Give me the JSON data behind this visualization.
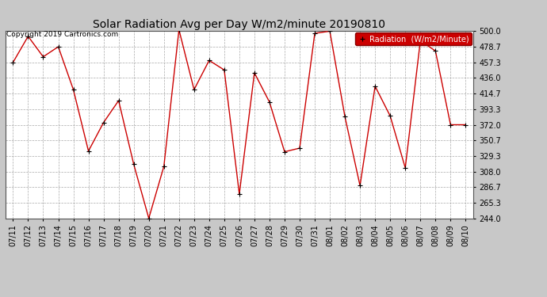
{
  "title": "Solar Radiation Avg per Day W/m2/minute 20190810",
  "copyright": "Copyright 2019 Cartronics.com",
  "legend_label": "Radiation  (W/m2/Minute)",
  "dates": [
    "07/11",
    "07/12",
    "07/13",
    "07/14",
    "07/15",
    "07/16",
    "07/17",
    "07/18",
    "07/19",
    "07/20",
    "07/21",
    "07/22",
    "07/23",
    "07/24",
    "07/25",
    "07/26",
    "07/27",
    "07/28",
    "07/29",
    "07/30",
    "07/31",
    "08/01",
    "08/02",
    "08/03",
    "08/04",
    "08/05",
    "08/06",
    "08/07",
    "08/08",
    "08/09",
    "08/10"
  ],
  "values": [
    457.3,
    493.0,
    465.0,
    478.7,
    420.0,
    336.0,
    375.0,
    405.0,
    318.0,
    244.0,
    315.0,
    502.0,
    420.0,
    460.0,
    447.0,
    277.0,
    443.0,
    403.0,
    335.0,
    340.0,
    497.0,
    500.0,
    383.0,
    288.7,
    424.7,
    384.0,
    313.0,
    487.0,
    473.0,
    372.0,
    372.0
  ],
  "ylim": [
    244.0,
    500.0
  ],
  "yticks": [
    244.0,
    265.3,
    286.7,
    308.0,
    329.3,
    350.7,
    372.0,
    393.3,
    414.7,
    436.0,
    457.3,
    478.7,
    500.0
  ],
  "line_color": "#cc0000",
  "marker_color": "#000000",
  "bg_color": "#c8c8c8",
  "plot_bg_color": "#ffffff",
  "grid_color": "#aaaaaa",
  "title_fontsize": 10,
  "legend_bg": "#cc0000",
  "legend_text_color": "#ffffff"
}
